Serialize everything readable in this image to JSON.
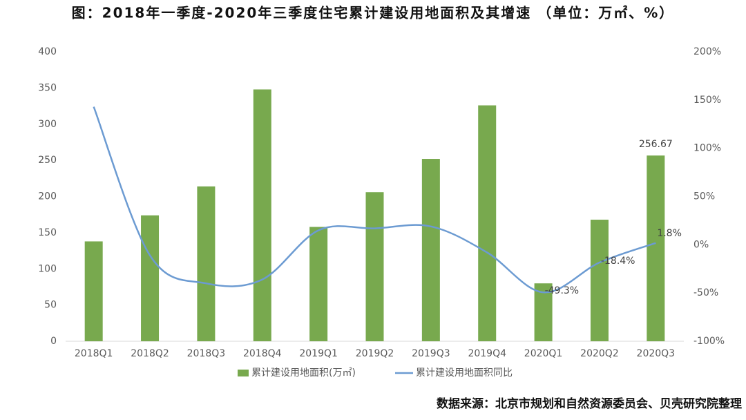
{
  "chart_data": {
    "type": "bar-line",
    "title": "图：2018年一季度-2020年三季度住宅累计建设用地面积及其增速 （单位：万㎡、%）",
    "categories": [
      "2018Q1",
      "2018Q2",
      "2018Q3",
      "2018Q4",
      "2019Q1",
      "2019Q2",
      "2019Q3",
      "2019Q4",
      "2020Q1",
      "2020Q2",
      "2020Q3"
    ],
    "series": [
      {
        "name": "累计建设用地面积(万㎡)",
        "type": "bar",
        "color": "#78a94e",
        "values": [
          138,
          174,
          214,
          348,
          158,
          206,
          252,
          326,
          80,
          168,
          256.67
        ],
        "value_labels": [
          null,
          null,
          null,
          null,
          null,
          null,
          null,
          null,
          null,
          null,
          "256.67"
        ]
      },
      {
        "name": "累计建设用地面积同比",
        "type": "line",
        "axis": "y2",
        "color": "#6c9bd2",
        "values": [
          143,
          -11,
          -40,
          -36,
          15,
          17,
          19,
          -8,
          -49.3,
          -18.4,
          1.8
        ],
        "value_labels": [
          null,
          null,
          null,
          null,
          null,
          null,
          null,
          null,
          "-49.3%",
          "-18.4%",
          "1.8%"
        ]
      }
    ],
    "ylim": [
      0,
      400
    ],
    "yticks": [
      0,
      50,
      100,
      150,
      200,
      250,
      300,
      350,
      400
    ],
    "y2lim": [
      -100,
      200
    ],
    "y2ticks": [
      {
        "value": -100,
        "label": "-100%"
      },
      {
        "value": -50,
        "label": "-50%"
      },
      {
        "value": 0,
        "label": "0%"
      },
      {
        "value": 50,
        "label": "50%"
      },
      {
        "value": 100,
        "label": "100%"
      },
      {
        "value": 150,
        "label": "150%"
      },
      {
        "value": 200,
        "label": "200%"
      }
    ],
    "grid": false,
    "legend": "bottom",
    "source": "数据来源：北京市规划和自然资源委员会、贝壳研究院整理"
  }
}
